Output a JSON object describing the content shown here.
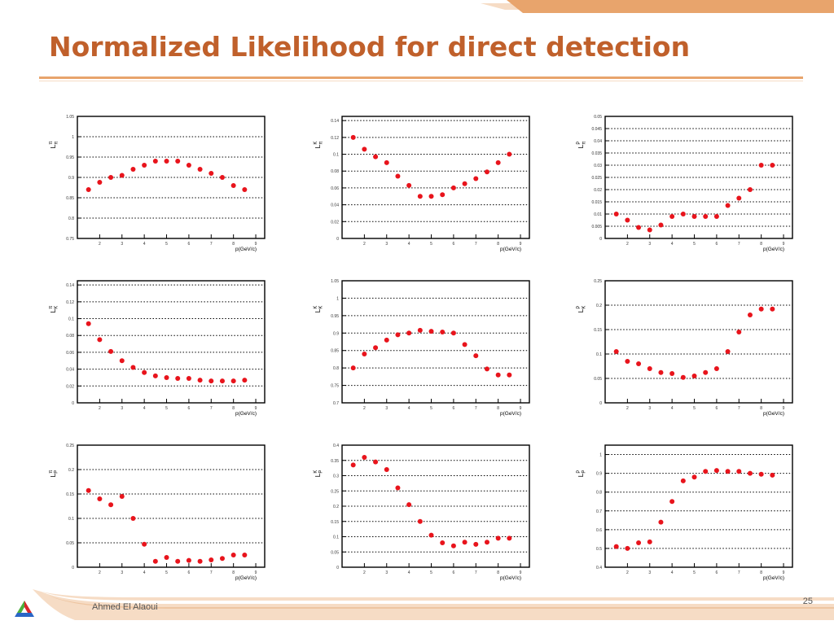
{
  "slide": {
    "title": "Normalized Likelihood for direct detection",
    "author": "Ahmed El Alaoui",
    "page_number": "25"
  },
  "colors": {
    "title": "#c0602b",
    "accent": "#e8a46c",
    "accent_light": "#f6dcc5",
    "marker": "#e8141c",
    "gridline": "#000000",
    "text": "#555555"
  },
  "icons": {
    "logo": "tricolor-triangle-logo"
  },
  "chart_data": [
    {
      "type": "scatter",
      "id": "L_pi_pi",
      "ylabel": "L_π^π",
      "xlabel": "p(GeV/c)",
      "xlim": [
        1,
        9.4
      ],
      "ylim": [
        0.75,
        1.05
      ],
      "xticks": [
        2,
        3,
        4,
        5,
        6,
        7,
        8,
        9
      ],
      "xtick_labels": [
        "2",
        "3",
        "4",
        "5",
        "6",
        "7",
        "8",
        "9"
      ],
      "yticks": [
        0.75,
        0.8,
        0.85,
        0.9,
        0.95,
        1,
        1.05
      ],
      "ytick_labels": [
        "0.75",
        "0.8",
        "0.85",
        "0.9",
        "0.95",
        "1",
        "1.05"
      ],
      "grid": "y-dotted",
      "x": [
        1.5,
        2,
        2.5,
        3,
        3.5,
        4,
        4.5,
        5,
        5.5,
        6,
        6.5,
        7,
        7.5,
        8,
        8.5
      ],
      "y": [
        0.87,
        0.888,
        0.9,
        0.905,
        0.92,
        0.93,
        0.94,
        0.94,
        0.94,
        0.93,
        0.92,
        0.91,
        0.9,
        0.88,
        0.87
      ]
    },
    {
      "type": "scatter",
      "id": "L_pi_K",
      "ylabel": "L_π^K",
      "xlabel": "p(GeV/c)",
      "xlim": [
        1,
        9.4
      ],
      "ylim": [
        0,
        0.145
      ],
      "xticks": [
        2,
        3,
        4,
        5,
        6,
        7,
        8,
        9
      ],
      "xtick_labels": [
        "2",
        "3",
        "4",
        "5",
        "6",
        "7",
        "8",
        "9"
      ],
      "yticks": [
        0,
        0.02,
        0.04,
        0.06,
        0.08,
        0.1,
        0.12,
        0.14
      ],
      "ytick_labels": [
        "0",
        "0.02",
        "0.04",
        "0.06",
        "0.08",
        "0.1",
        "0.12",
        "0.14"
      ],
      "grid": "y-dotted",
      "x": [
        1.5,
        2,
        2.5,
        3,
        3.5,
        4,
        4.5,
        5,
        5.5,
        6,
        6.5,
        7,
        7.5,
        8,
        8.5
      ],
      "y": [
        0.12,
        0.106,
        0.097,
        0.09,
        0.074,
        0.063,
        0.05,
        0.05,
        0.052,
        0.06,
        0.065,
        0.071,
        0.079,
        0.09,
        0.1
      ]
    },
    {
      "type": "scatter",
      "id": "L_pi_P",
      "ylabel": "L_π^P",
      "xlabel": "p(GeV/c)",
      "xlim": [
        1,
        9.4
      ],
      "ylim": [
        0,
        0.05
      ],
      "xticks": [
        2,
        3,
        4,
        5,
        6,
        7,
        8,
        9
      ],
      "xtick_labels": [
        "2",
        "3",
        "4",
        "5",
        "6",
        "7",
        "8",
        "9"
      ],
      "yticks": [
        0,
        0.005,
        0.01,
        0.015,
        0.02,
        0.025,
        0.03,
        0.035,
        0.04,
        0.045,
        0.05
      ],
      "ytick_labels": [
        "0",
        "0.005",
        "0.01",
        "0.015",
        "0.02",
        "0.025",
        "0.03",
        "0.035",
        "0.04",
        "0.045",
        "0.05"
      ],
      "grid": "y-dotted",
      "x": [
        1.5,
        2,
        2.5,
        3,
        3.5,
        4,
        4.5,
        5,
        5.5,
        6,
        6.5,
        7,
        7.5,
        8,
        8.5
      ],
      "y": [
        0.01,
        0.0075,
        0.0045,
        0.0035,
        0.0055,
        0.009,
        0.01,
        0.009,
        0.009,
        0.009,
        0.0135,
        0.0165,
        0.02,
        0.03,
        0.03
      ]
    },
    {
      "type": "scatter",
      "id": "L_K_pi",
      "ylabel": "L_K^π",
      "xlabel": "p(GeV/c)",
      "xlim": [
        1,
        9.4
      ],
      "ylim": [
        0,
        0.145
      ],
      "xticks": [
        2,
        3,
        4,
        5,
        6,
        7,
        8,
        9
      ],
      "xtick_labels": [
        "2",
        "3",
        "4",
        "5",
        "6",
        "7",
        "8",
        "9"
      ],
      "yticks": [
        0,
        0.02,
        0.04,
        0.06,
        0.08,
        0.1,
        0.12,
        0.14
      ],
      "ytick_labels": [
        "0",
        "0.02",
        "0.04",
        "0.06",
        "0.08",
        "0.1",
        "0.12",
        "0.14"
      ],
      "grid": "y-dotted",
      "x": [
        1.5,
        2,
        2.5,
        3,
        3.5,
        4,
        4.5,
        5,
        5.5,
        6,
        6.5,
        7,
        7.5,
        8,
        8.5
      ],
      "y": [
        0.094,
        0.075,
        0.061,
        0.05,
        0.042,
        0.036,
        0.032,
        0.03,
        0.029,
        0.029,
        0.027,
        0.026,
        0.026,
        0.026,
        0.027
      ]
    },
    {
      "type": "scatter",
      "id": "L_K_K",
      "ylabel": "L_K^K",
      "xlabel": "p(GeV/c)",
      "xlim": [
        1,
        9.4
      ],
      "ylim": [
        0.7,
        1.05
      ],
      "xticks": [
        2,
        3,
        4,
        5,
        6,
        7,
        8,
        9
      ],
      "xtick_labels": [
        "2",
        "3",
        "4",
        "5",
        "6",
        "7",
        "8",
        "9"
      ],
      "yticks": [
        0.7,
        0.75,
        0.8,
        0.85,
        0.9,
        0.95,
        1,
        1.05
      ],
      "ytick_labels": [
        "0.7",
        "0.75",
        "0.8",
        "0.85",
        "0.9",
        "0.95",
        "1",
        "1.05"
      ],
      "grid": "y-dotted",
      "x": [
        1.5,
        2,
        2.5,
        3,
        3.5,
        4,
        4.5,
        5,
        5.5,
        6,
        6.5,
        7,
        7.5,
        8,
        8.5
      ],
      "y": [
        0.8,
        0.84,
        0.858,
        0.88,
        0.895,
        0.9,
        0.908,
        0.905,
        0.903,
        0.9,
        0.867,
        0.835,
        0.797,
        0.78,
        0.78
      ]
    },
    {
      "type": "scatter",
      "id": "L_K_P",
      "ylabel": "L_K^P",
      "xlabel": "p(GeV/c)",
      "xlim": [
        1,
        9.4
      ],
      "ylim": [
        0,
        0.25
      ],
      "xticks": [
        2,
        3,
        4,
        5,
        6,
        7,
        8,
        9
      ],
      "xtick_labels": [
        "2",
        "3",
        "4",
        "5",
        "6",
        "7",
        "8",
        "9"
      ],
      "yticks": [
        0,
        0.05,
        0.1,
        0.15,
        0.2,
        0.25
      ],
      "ytick_labels": [
        "0",
        "0.05",
        "0.1",
        "0.15",
        "0.2",
        "0.25"
      ],
      "grid": "y-dotted",
      "x": [
        1.5,
        2,
        2.5,
        3,
        3.5,
        4,
        4.5,
        5,
        5.5,
        6,
        6.5,
        7,
        7.5,
        8,
        8.5
      ],
      "y": [
        0.105,
        0.085,
        0.08,
        0.07,
        0.062,
        0.06,
        0.052,
        0.055,
        0.062,
        0.07,
        0.105,
        0.145,
        0.18,
        0.192,
        0.192
      ]
    },
    {
      "type": "scatter",
      "id": "L_P_pi",
      "ylabel": "L_P^π",
      "xlabel": "p(GeV/c)",
      "xlim": [
        1,
        9.4
      ],
      "ylim": [
        0,
        0.25
      ],
      "xticks": [
        2,
        3,
        4,
        5,
        6,
        7,
        8,
        9
      ],
      "xtick_labels": [
        "2",
        "3",
        "4",
        "5",
        "6",
        "7",
        "8",
        "9"
      ],
      "yticks": [
        0,
        0.05,
        0.1,
        0.15,
        0.2,
        0.25
      ],
      "ytick_labels": [
        "0",
        "0.05",
        "0.1",
        "0.15",
        "0.2",
        "0.25"
      ],
      "grid": "y-dotted",
      "x": [
        1.5,
        2,
        2.5,
        3,
        3.5,
        4,
        4.5,
        5,
        5.5,
        6,
        6.5,
        7,
        7.5,
        8,
        8.5
      ],
      "y": [
        0.157,
        0.14,
        0.128,
        0.145,
        0.1,
        0.047,
        0.012,
        0.02,
        0.012,
        0.014,
        0.012,
        0.015,
        0.018,
        0.025,
        0.025
      ]
    },
    {
      "type": "scatter",
      "id": "L_P_K",
      "ylabel": "L_P^K",
      "xlabel": "p(GeV/c)",
      "xlim": [
        1,
        9.4
      ],
      "ylim": [
        0,
        0.4
      ],
      "xticks": [
        2,
        3,
        4,
        5,
        6,
        7,
        8,
        9
      ],
      "xtick_labels": [
        "2",
        "3",
        "4",
        "5",
        "6",
        "7",
        "8",
        "9"
      ],
      "yticks": [
        0,
        0.05,
        0.1,
        0.15,
        0.2,
        0.25,
        0.3,
        0.35,
        0.4
      ],
      "ytick_labels": [
        "0",
        "0.05",
        "0.1",
        "0.15",
        "0.2",
        "0.25",
        "0.3",
        "0.35",
        "0.4"
      ],
      "grid": "y-dotted",
      "x": [
        1.5,
        2,
        2.5,
        3,
        3.5,
        4,
        4.5,
        5,
        5.5,
        6,
        6.5,
        7,
        7.5,
        8,
        8.5
      ],
      "y": [
        0.335,
        0.36,
        0.345,
        0.32,
        0.26,
        0.205,
        0.15,
        0.105,
        0.08,
        0.07,
        0.082,
        0.075,
        0.082,
        0.095,
        0.095
      ]
    },
    {
      "type": "scatter",
      "id": "L_P_P",
      "ylabel": "L_P^P",
      "xlabel": "p(GeV/c)",
      "xlim": [
        1,
        9.4
      ],
      "ylim": [
        0.4,
        1.05
      ],
      "xticks": [
        2,
        3,
        4,
        5,
        6,
        7,
        8,
        9
      ],
      "xtick_labels": [
        "2",
        "3",
        "4",
        "5",
        "6",
        "7",
        "8",
        "9"
      ],
      "yticks": [
        0.4,
        0.5,
        0.6,
        0.7,
        0.8,
        0.9,
        1
      ],
      "ytick_labels": [
        "0.4",
        "0.5",
        "0.6",
        "0.7",
        "0.8",
        "0.9",
        "1"
      ],
      "grid": "y-dotted",
      "x": [
        1.5,
        2,
        2.5,
        3,
        3.5,
        4,
        4.5,
        5,
        5.5,
        6,
        6.5,
        7,
        7.5,
        8,
        8.5
      ],
      "y": [
        0.51,
        0.5,
        0.53,
        0.535,
        0.64,
        0.75,
        0.86,
        0.88,
        0.91,
        0.915,
        0.91,
        0.91,
        0.9,
        0.895,
        0.89
      ]
    }
  ]
}
